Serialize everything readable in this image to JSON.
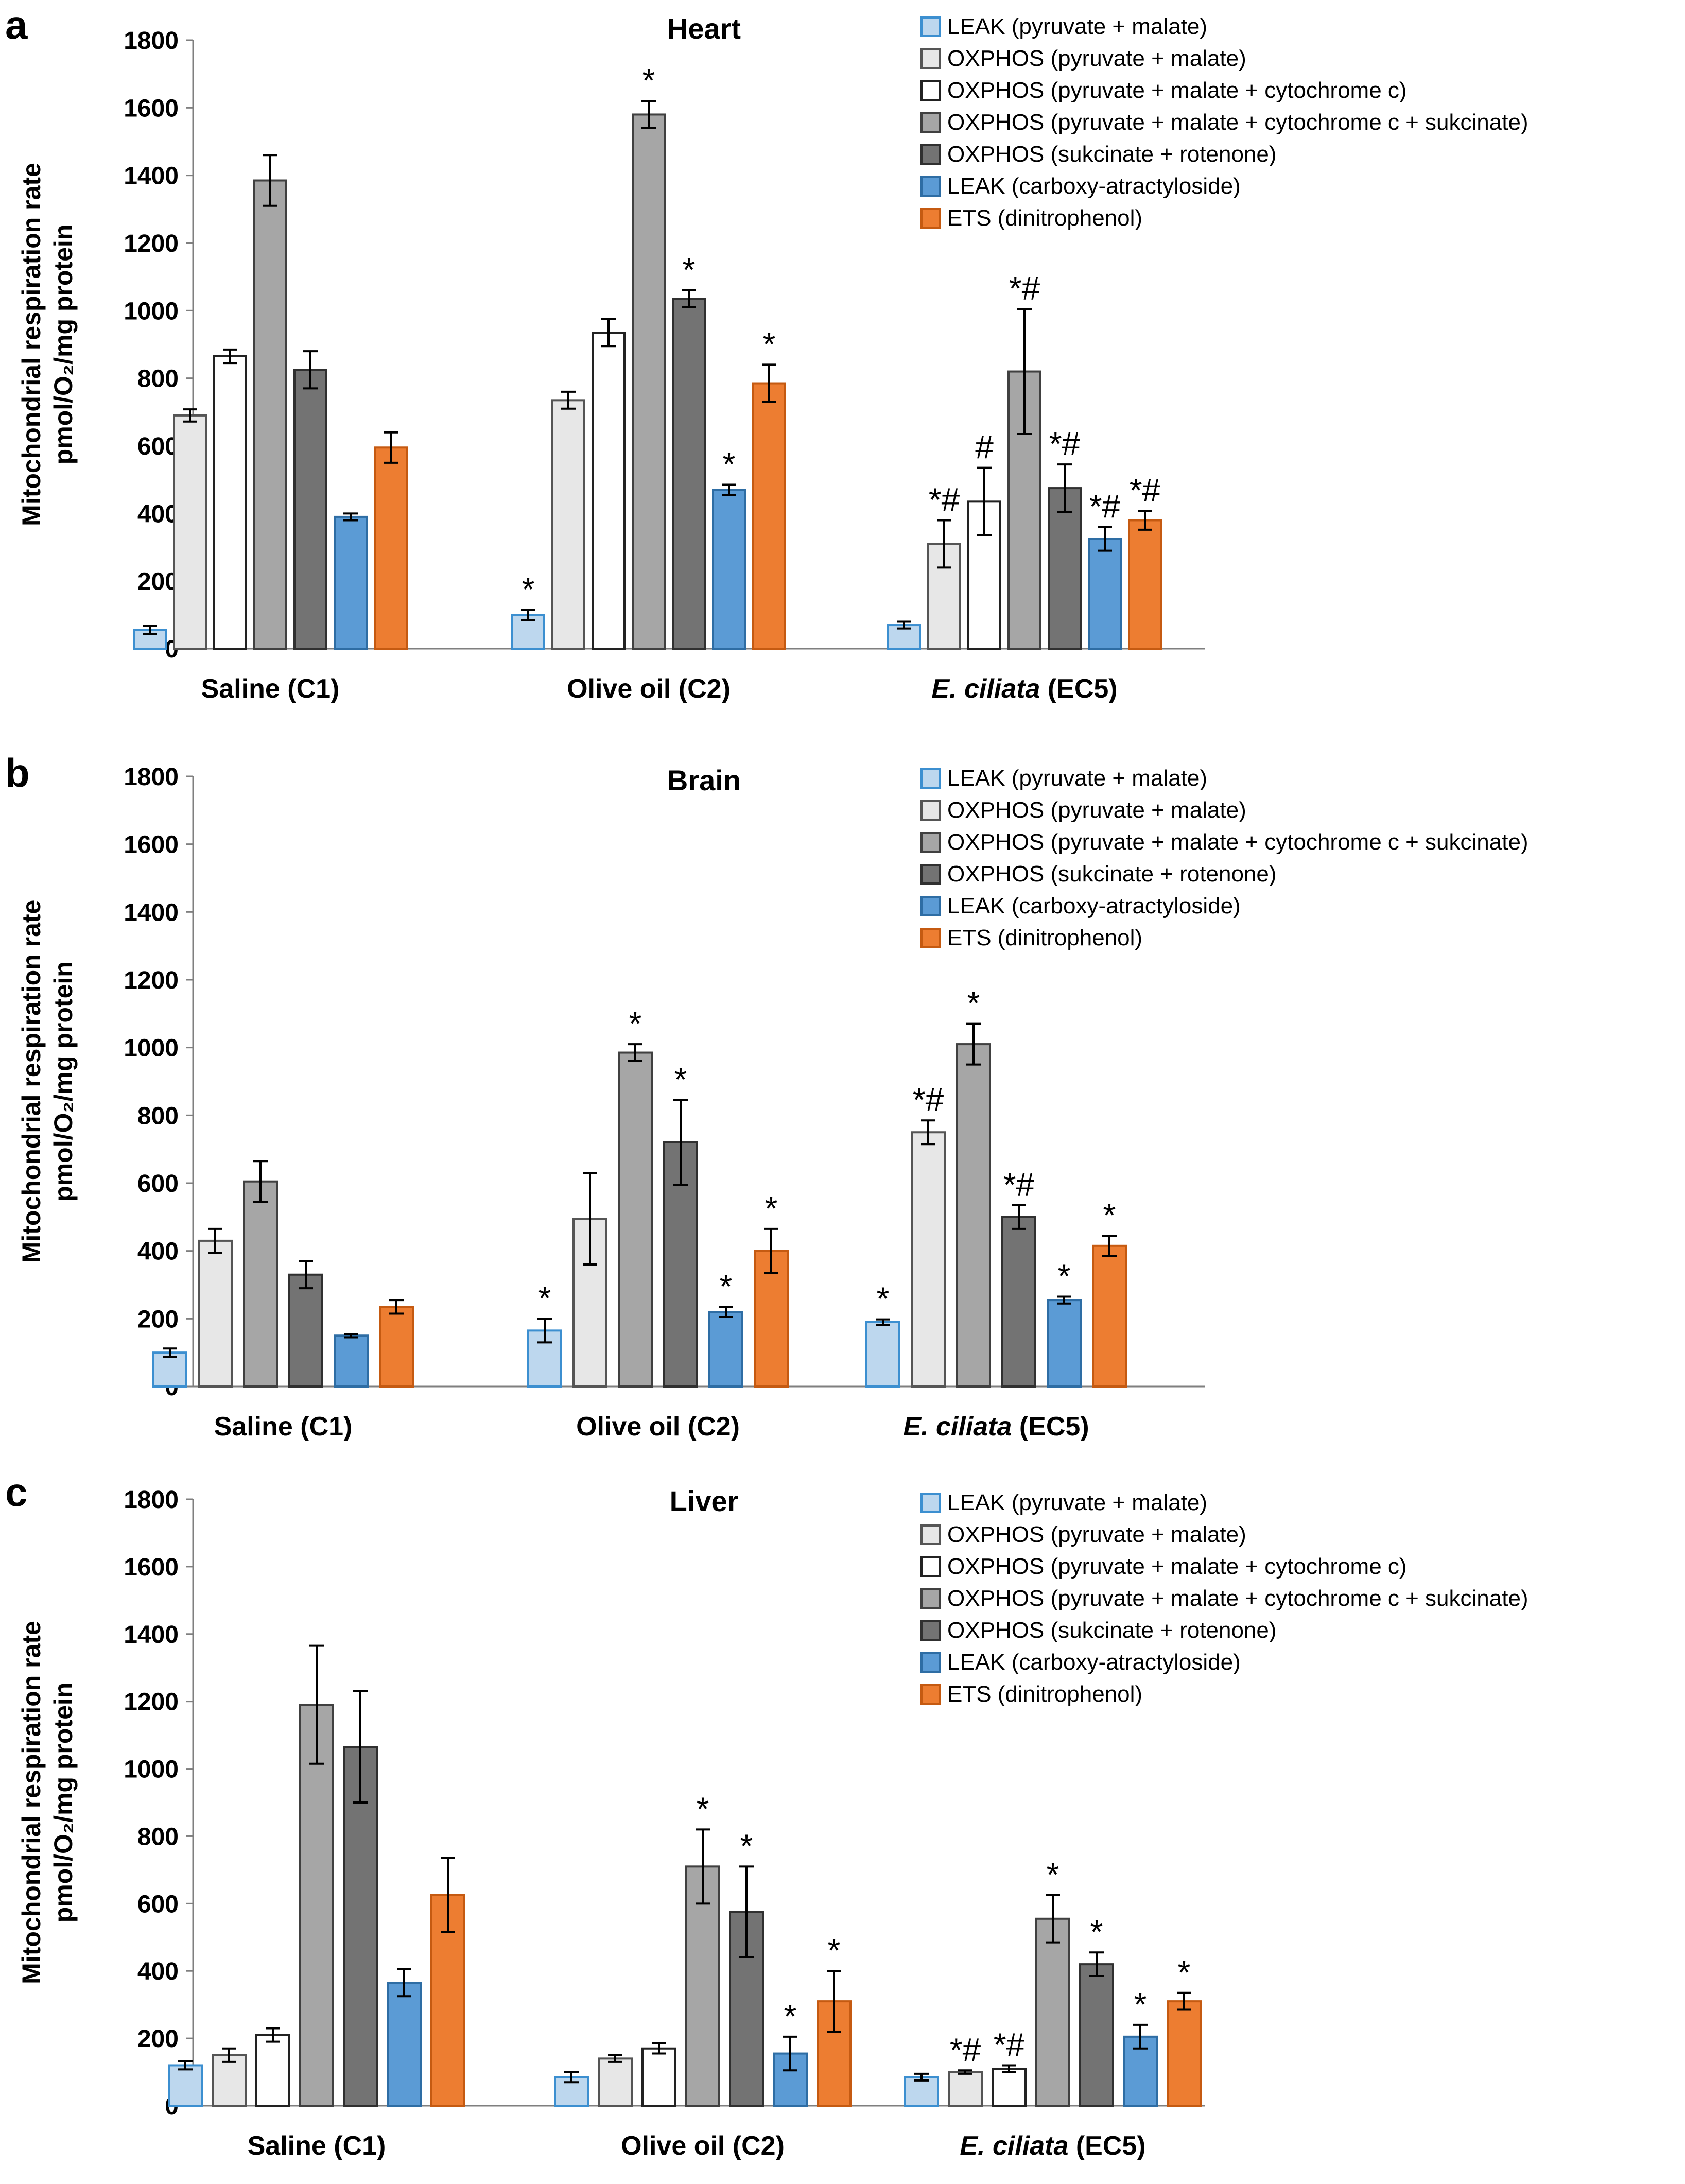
{
  "chart_data": [
    {
      "type": "bar",
      "panel_label": "a",
      "title": "Heart",
      "ylabel_line1": "Mitochondrial respiration rate",
      "ylabel_line2": "pmol/O₂/mg protein",
      "ylim": [
        0,
        1800
      ],
      "yticks": [
        0,
        200,
        400,
        600,
        800,
        1000,
        1200,
        1400,
        1600,
        1800
      ],
      "categories": [
        {
          "prefix": "Saline (C1)",
          "italic": "",
          "suffix": ""
        },
        {
          "prefix": "Olive oil (C2)",
          "italic": "",
          "suffix": ""
        },
        {
          "prefix": "",
          "italic": "E. ciliata",
          "suffix": " (EC5)"
        }
      ],
      "legend_position": "top-right",
      "series": [
        {
          "name": "LEAK (pyruvate + malate)",
          "color": "#bdd7ee",
          "stroke": "#3c8fd0",
          "values": [
            55,
            100,
            70
          ],
          "errors": [
            12,
            15,
            10
          ],
          "sig": [
            "",
            "*",
            ""
          ]
        },
        {
          "name": "OXPHOS (pyruvate + malate)",
          "color": "#e7e7e7",
          "stroke": "#555555",
          "values": [
            690,
            735,
            310
          ],
          "errors": [
            18,
            25,
            70
          ],
          "sig": [
            "",
            "",
            "*#"
          ]
        },
        {
          "name": "OXPHOS (pyruvate + malate + cytochrome c)",
          "color": "#ffffff",
          "stroke": "#222222",
          "values": [
            865,
            935,
            435
          ],
          "errors": [
            20,
            40,
            100
          ],
          "sig": [
            "",
            "",
            "#"
          ]
        },
        {
          "name": "OXPHOS (pyruvate + malate + cytochrome c + sukcinate)",
          "color": "#a6a6a6",
          "stroke": "#404040",
          "values": [
            1385,
            1580,
            820
          ],
          "errors": [
            75,
            40,
            185
          ],
          "sig": [
            "",
            "*",
            "*#"
          ]
        },
        {
          "name": "OXPHOS (sukcinate + rotenone)",
          "color": "#737373",
          "stroke": "#303030",
          "values": [
            825,
            1035,
            475
          ],
          "errors": [
            55,
            25,
            70
          ],
          "sig": [
            "",
            "*",
            "*#"
          ]
        },
        {
          "name": "LEAK (carboxy-atractyloside)",
          "color": "#5b9bd5",
          "stroke": "#2e6da4",
          "values": [
            390,
            470,
            325
          ],
          "errors": [
            10,
            15,
            35
          ],
          "sig": [
            "",
            "*",
            "*#"
          ]
        },
        {
          "name": "ETS (dinitrophenol)",
          "color": "#ed7d31",
          "stroke": "#c55a11",
          "values": [
            595,
            785,
            380
          ],
          "errors": [
            45,
            55,
            28
          ],
          "sig": [
            "",
            "*",
            "*#"
          ]
        }
      ]
    },
    {
      "type": "bar",
      "panel_label": "b",
      "title": "Brain",
      "ylabel_line1": "Mitochondrial respiration rate",
      "ylabel_line2": "pmol/O₂/mg protein",
      "ylim": [
        0,
        1800
      ],
      "yticks": [
        0,
        200,
        400,
        600,
        800,
        1000,
        1200,
        1400,
        1600,
        1800
      ],
      "categories": [
        {
          "prefix": "Saline (C1)",
          "italic": "",
          "suffix": ""
        },
        {
          "prefix": "Olive oil (C2)",
          "italic": "",
          "suffix": ""
        },
        {
          "prefix": "",
          "italic": "E. ciliata",
          "suffix": " (EC5)"
        }
      ],
      "legend_position": "top-right",
      "series": [
        {
          "name": "LEAK (pyruvate + malate)",
          "color": "#bdd7ee",
          "stroke": "#3c8fd0",
          "values": [
            100,
            165,
            190
          ],
          "errors": [
            12,
            35,
            8
          ],
          "sig": [
            "",
            "*",
            "*"
          ]
        },
        {
          "name": "OXPHOS (pyruvate + malate)",
          "color": "#e7e7e7",
          "stroke": "#555555",
          "values": [
            430,
            495,
            750
          ],
          "errors": [
            35,
            135,
            35
          ],
          "sig": [
            "",
            "",
            "*#"
          ]
        },
        {
          "name": "OXPHOS (pyruvate + malate + cytochrome c + sukcinate)",
          "color": "#a6a6a6",
          "stroke": "#404040",
          "values": [
            605,
            985,
            1010
          ],
          "errors": [
            60,
            25,
            60
          ],
          "sig": [
            "",
            "*",
            "*"
          ]
        },
        {
          "name": "OXPHOS (sukcinate + rotenone)",
          "color": "#737373",
          "stroke": "#303030",
          "values": [
            330,
            720,
            500
          ],
          "errors": [
            40,
            125,
            35
          ],
          "sig": [
            "",
            "*",
            "*#"
          ]
        },
        {
          "name": "LEAK (carboxy-atractyloside)",
          "color": "#5b9bd5",
          "stroke": "#2e6da4",
          "values": [
            150,
            220,
            255
          ],
          "errors": [
            5,
            15,
            10
          ],
          "sig": [
            "",
            "*",
            "*"
          ]
        },
        {
          "name": "ETS (dinitrophenol)",
          "color": "#ed7d31",
          "stroke": "#c55a11",
          "values": [
            235,
            400,
            415
          ],
          "errors": [
            20,
            65,
            30
          ],
          "sig": [
            "",
            "*",
            "*"
          ]
        }
      ]
    },
    {
      "type": "bar",
      "panel_label": "c",
      "title": "Liver",
      "ylabel_line1": "Mitochondrial respiration rate",
      "ylabel_line2": "pmol/O₂/mg protein",
      "ylim": [
        0,
        1800
      ],
      "yticks": [
        0,
        200,
        400,
        600,
        800,
        1000,
        1200,
        1400,
        1600,
        1800
      ],
      "categories": [
        {
          "prefix": "Saline (C1)",
          "italic": "",
          "suffix": ""
        },
        {
          "prefix": "Olive oil (C2)",
          "italic": "",
          "suffix": ""
        },
        {
          "prefix": "",
          "italic": "E. ciliata",
          "suffix": " (EC5)"
        }
      ],
      "legend_position": "top-right",
      "series": [
        {
          "name": "LEAK (pyruvate + malate)",
          "color": "#bdd7ee",
          "stroke": "#3c8fd0",
          "values": [
            120,
            85,
            85
          ],
          "errors": [
            12,
            15,
            10
          ],
          "sig": [
            "",
            "",
            ""
          ]
        },
        {
          "name": "OXPHOS (pyruvate + malate)",
          "color": "#e7e7e7",
          "stroke": "#555555",
          "values": [
            150,
            140,
            100
          ],
          "errors": [
            20,
            10,
            5
          ],
          "sig": [
            "",
            "",
            "*#"
          ]
        },
        {
          "name": "OXPHOS (pyruvate + malate + cytochrome c)",
          "color": "#ffffff",
          "stroke": "#222222",
          "values": [
            210,
            170,
            110
          ],
          "errors": [
            20,
            15,
            10
          ],
          "sig": [
            "",
            "",
            "*#"
          ]
        },
        {
          "name": "OXPHOS (pyruvate + malate + cytochrome c + sukcinate)",
          "color": "#a6a6a6",
          "stroke": "#404040",
          "values": [
            1190,
            710,
            555
          ],
          "errors": [
            175,
            110,
            70
          ],
          "sig": [
            "",
            "*",
            "*"
          ]
        },
        {
          "name": "OXPHOS (sukcinate + rotenone)",
          "color": "#737373",
          "stroke": "#303030",
          "values": [
            1065,
            575,
            420
          ],
          "errors": [
            165,
            135,
            35
          ],
          "sig": [
            "",
            "*",
            "*"
          ]
        },
        {
          "name": "LEAK (carboxy-atractyloside)",
          "color": "#5b9bd5",
          "stroke": "#2e6da4",
          "values": [
            365,
            155,
            205
          ],
          "errors": [
            40,
            50,
            35
          ],
          "sig": [
            "",
            "*",
            "*"
          ]
        },
        {
          "name": "ETS (dinitrophenol)",
          "color": "#ed7d31",
          "stroke": "#c55a11",
          "values": [
            625,
            310,
            310
          ],
          "errors": [
            110,
            90,
            25
          ],
          "sig": [
            "",
            "*",
            "*"
          ]
        }
      ]
    }
  ]
}
